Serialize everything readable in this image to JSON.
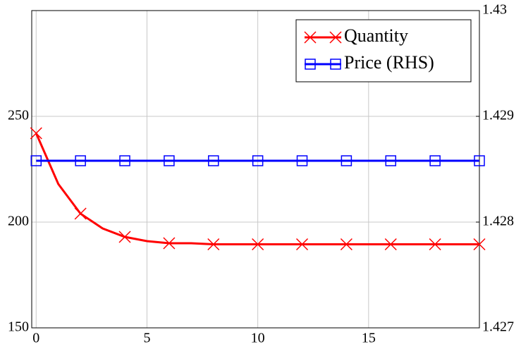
{
  "chart_data": {
    "type": "line",
    "x": [
      0,
      1,
      2,
      3,
      4,
      5,
      6,
      7,
      8,
      9,
      10,
      11,
      12,
      13,
      14,
      15,
      16,
      17,
      18,
      19,
      20
    ],
    "series": [
      {
        "name": "Quantity",
        "color": "#ff0000",
        "marker": "x",
        "axis": "y",
        "values": [
          242,
          218,
          204,
          197,
          193,
          191,
          190,
          190,
          189.5,
          189.5,
          189.5,
          189.5,
          189.5,
          189.5,
          189.5,
          189.5,
          189.5,
          189.5,
          189.5,
          189.5,
          189.5
        ]
      },
      {
        "name": "Price (RHS)",
        "color": "#0000ff",
        "marker": "square",
        "axis": "y2",
        "values": [
          1.42858,
          1.42858,
          1.42858,
          1.42858,
          1.42858,
          1.42858,
          1.42858,
          1.42858,
          1.42858,
          1.42858,
          1.42858,
          1.42858,
          1.42858,
          1.42858,
          1.42858,
          1.42858,
          1.42858,
          1.42858,
          1.42858,
          1.42858,
          1.42858
        ]
      }
    ],
    "marker_every": 2,
    "xlim": [
      -0.2,
      20
    ],
    "xticks": [
      0,
      5,
      10,
      15
    ],
    "ylim": [
      150,
      300
    ],
    "yticks": [
      150,
      200,
      250
    ],
    "y2lim": [
      1.427,
      1.43
    ],
    "y2ticks": [
      1.427,
      1.428,
      1.429,
      1.43
    ],
    "grid": true,
    "legend": "upper right"
  }
}
